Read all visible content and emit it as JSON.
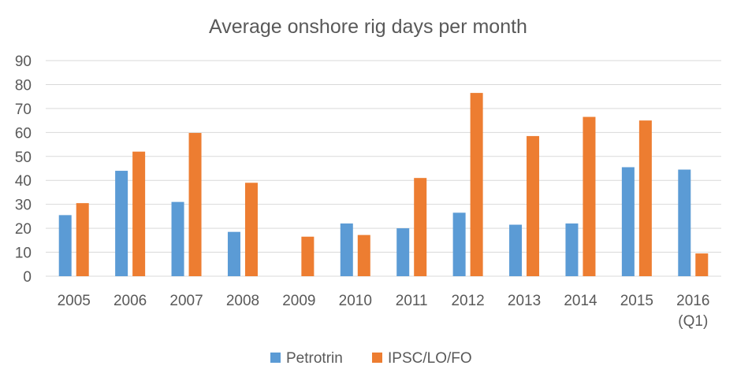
{
  "chart_data": {
    "type": "bar",
    "title": "Average onshore rig days per month",
    "categories": [
      [
        "2005"
      ],
      [
        "2006"
      ],
      [
        "2007"
      ],
      [
        "2008"
      ],
      [
        "2009"
      ],
      [
        "2010"
      ],
      [
        "2011"
      ],
      [
        "2012"
      ],
      [
        "2013"
      ],
      [
        "2014"
      ],
      [
        "2015"
      ],
      [
        "2016",
        "(Q1)"
      ]
    ],
    "series": [
      {
        "name": "Petrotrin",
        "color": "#5b9bd5",
        "values": [
          25.5,
          44,
          31,
          18.5,
          0,
          22,
          20,
          26.5,
          21.5,
          22,
          45.5,
          44.5
        ]
      },
      {
        "name": "IPSC/LO/FO",
        "color": "#ed7d31",
        "values": [
          30.5,
          52,
          59.8,
          39,
          16.5,
          17.2,
          41,
          76.5,
          58.5,
          66.5,
          65,
          9.5
        ]
      }
    ],
    "ylim": [
      0,
      90
    ],
    "yticks": [
      0,
      10,
      20,
      30,
      40,
      50,
      60,
      70,
      80,
      90
    ],
    "grid": true,
    "gridColor": "#d9d9d9",
    "legend": "bottom"
  }
}
